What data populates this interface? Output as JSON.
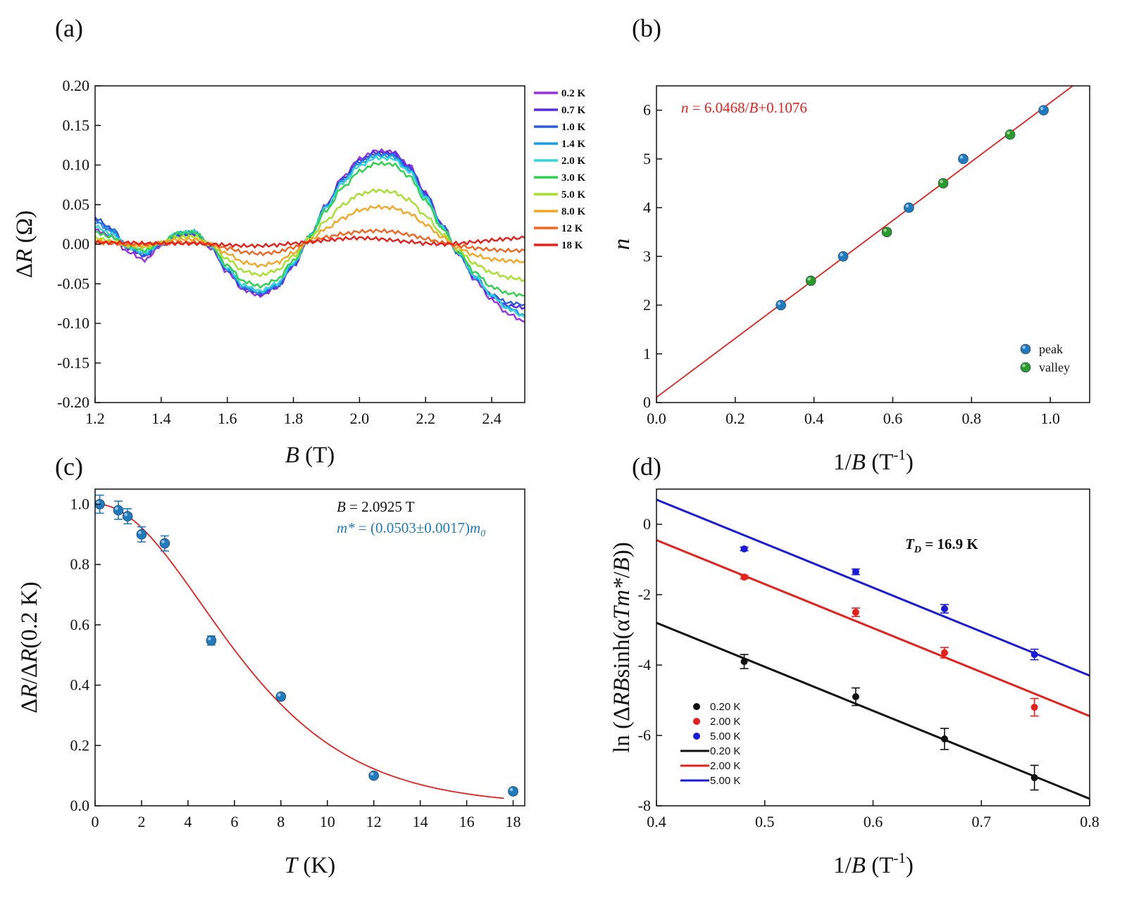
{
  "panels": [
    {
      "id": "a",
      "label": "(a)"
    },
    {
      "id": "b",
      "label": "(b)"
    },
    {
      "id": "c",
      "label": "(c)"
    },
    {
      "id": "d",
      "label": "(d)"
    }
  ],
  "chart_data": [
    {
      "panel": "(a)",
      "type": "line",
      "xlabel": "B (T)",
      "xlabel_parts": {
        "var": "B",
        "unit": " (T)"
      },
      "ylabel": "ΔR (Ω)",
      "ylabel_parts": {
        "pre": "Δ",
        "var": "R",
        "unit": " (Ω)"
      },
      "xlim": [
        1.2,
        2.5
      ],
      "ylim": [
        -0.2,
        0.2
      ],
      "xticks": [
        "1.2",
        "1.4",
        "1.6",
        "1.8",
        "2.0",
        "2.2",
        "2.4"
      ],
      "xtick_values": [
        1.2,
        1.4,
        1.6,
        1.8,
        2.0,
        2.2,
        2.4
      ],
      "yticks": [
        "-0.20",
        "-0.15",
        "-0.10",
        "-0.05",
        "0.00",
        "0.05",
        "0.10",
        "0.15",
        "0.20"
      ],
      "ytick_values": [
        -0.2,
        -0.15,
        -0.1,
        -0.05,
        0,
        0.05,
        0.1,
        0.15,
        0.2
      ],
      "legend_position": "outside-right",
      "series": [
        {
          "name": "0.2 K",
          "color": "#9b30e0",
          "x": [
            1.2,
            1.25,
            1.3,
            1.35,
            1.4,
            1.45,
            1.5,
            1.55,
            1.6,
            1.65,
            1.7,
            1.75,
            1.8,
            1.85,
            1.9,
            1.95,
            2.0,
            2.05,
            2.1,
            2.15,
            2.2,
            2.25,
            2.3,
            2.35,
            2.4,
            2.45,
            2.5
          ],
          "y": [
            0.018,
            0.01,
            -0.01,
            -0.02,
            -0.002,
            0.01,
            0.012,
            -0.005,
            -0.035,
            -0.058,
            -0.065,
            -0.055,
            -0.028,
            0.01,
            0.05,
            0.085,
            0.108,
            0.118,
            0.117,
            0.1,
            0.065,
            0.025,
            -0.012,
            -0.045,
            -0.07,
            -0.088,
            -0.098
          ]
        },
        {
          "name": "0.7 K",
          "color": "#5a2be0",
          "x": [
            1.2,
            1.25,
            1.3,
            1.35,
            1.4,
            1.45,
            1.5,
            1.55,
            1.6,
            1.65,
            1.7,
            1.75,
            1.8,
            1.85,
            1.9,
            1.95,
            2.0,
            2.05,
            2.1,
            2.15,
            2.2,
            2.25,
            2.3,
            2.35,
            2.4,
            2.45,
            2.5
          ],
          "y": [
            0.03,
            0.018,
            -0.005,
            -0.015,
            0,
            0.012,
            0.014,
            -0.003,
            -0.033,
            -0.056,
            -0.063,
            -0.054,
            -0.027,
            0.01,
            0.049,
            0.083,
            0.106,
            0.116,
            0.115,
            0.098,
            0.064,
            0.024,
            -0.012,
            -0.043,
            -0.066,
            -0.078,
            -0.08
          ]
        },
        {
          "name": "1.0 K",
          "color": "#2b5cdc",
          "x": [
            1.2,
            1.25,
            1.3,
            1.35,
            1.4,
            1.45,
            1.5,
            1.55,
            1.6,
            1.65,
            1.7,
            1.75,
            1.8,
            1.85,
            1.9,
            1.95,
            2.0,
            2.05,
            2.1,
            2.15,
            2.2,
            2.25,
            2.3,
            2.35,
            2.4,
            2.45,
            2.5
          ],
          "y": [
            0.033,
            0.02,
            -0.004,
            -0.014,
            0,
            0.013,
            0.015,
            -0.002,
            -0.032,
            -0.055,
            -0.062,
            -0.053,
            -0.026,
            0.01,
            0.048,
            0.081,
            0.104,
            0.114,
            0.113,
            0.096,
            0.062,
            0.023,
            -0.012,
            -0.042,
            -0.064,
            -0.074,
            -0.076
          ]
        },
        {
          "name": "1.4 K",
          "color": "#1a9be6",
          "x": [
            1.2,
            1.25,
            1.3,
            1.35,
            1.4,
            1.45,
            1.5,
            1.55,
            1.6,
            1.65,
            1.7,
            1.75,
            1.8,
            1.85,
            1.9,
            1.95,
            2.0,
            2.05,
            2.1,
            2.15,
            2.2,
            2.25,
            2.3,
            2.35,
            2.4,
            2.45,
            2.5
          ],
          "y": [
            0.028,
            0.017,
            -0.004,
            -0.012,
            0,
            0.014,
            0.016,
            -0.002,
            -0.031,
            -0.054,
            -0.061,
            -0.052,
            -0.025,
            0.011,
            0.048,
            0.08,
            0.102,
            0.112,
            0.111,
            0.094,
            0.06,
            0.022,
            -0.012,
            -0.042,
            -0.065,
            -0.08,
            -0.09
          ]
        },
        {
          "name": "2.0 K",
          "color": "#33d6d6",
          "x": [
            1.2,
            1.25,
            1.3,
            1.35,
            1.4,
            1.45,
            1.5,
            1.55,
            1.6,
            1.65,
            1.7,
            1.75,
            1.8,
            1.85,
            1.9,
            1.95,
            2.0,
            2.05,
            2.1,
            2.15,
            2.2,
            2.25,
            2.3,
            2.35,
            2.4,
            2.45,
            2.5
          ],
          "y": [
            0.022,
            0.013,
            -0.004,
            -0.01,
            0.001,
            0.014,
            0.016,
            -0.002,
            -0.03,
            -0.052,
            -0.059,
            -0.05,
            -0.024,
            0.011,
            0.047,
            0.078,
            0.099,
            0.109,
            0.108,
            0.092,
            0.059,
            0.022,
            -0.011,
            -0.041,
            -0.065,
            -0.082,
            -0.092
          ]
        },
        {
          "name": "3.0 K",
          "color": "#2fd24a",
          "x": [
            1.2,
            1.25,
            1.3,
            1.35,
            1.4,
            1.45,
            1.5,
            1.55,
            1.6,
            1.65,
            1.7,
            1.75,
            1.8,
            1.85,
            1.9,
            1.95,
            2.0,
            2.05,
            2.1,
            2.15,
            2.2,
            2.25,
            2.3,
            2.35,
            2.4,
            2.45,
            2.5
          ],
          "y": [
            0.015,
            0.009,
            -0.003,
            -0.008,
            0.002,
            0.014,
            0.015,
            -0.001,
            -0.027,
            -0.047,
            -0.053,
            -0.045,
            -0.021,
            0.01,
            0.043,
            0.072,
            0.092,
            0.102,
            0.101,
            0.086,
            0.055,
            0.02,
            -0.01,
            -0.036,
            -0.054,
            -0.062,
            -0.065
          ]
        },
        {
          "name": "5.0 K",
          "color": "#a6e02a",
          "x": [
            1.2,
            1.25,
            1.3,
            1.35,
            1.4,
            1.45,
            1.5,
            1.55,
            1.6,
            1.65,
            1.7,
            1.75,
            1.8,
            1.85,
            1.9,
            1.95,
            2.0,
            2.05,
            2.1,
            2.15,
            2.2,
            2.25,
            2.3,
            2.35,
            2.4,
            2.45,
            2.5
          ],
          "y": [
            0.008,
            0.004,
            -0.002,
            -0.004,
            0.002,
            0.009,
            0.01,
            0,
            -0.019,
            -0.034,
            -0.039,
            -0.033,
            -0.015,
            0.008,
            0.03,
            0.05,
            0.063,
            0.068,
            0.066,
            0.056,
            0.036,
            0.013,
            -0.008,
            -0.025,
            -0.036,
            -0.042,
            -0.045
          ]
        },
        {
          "name": "8.0 K",
          "color": "#f5a623",
          "x": [
            1.2,
            1.25,
            1.3,
            1.35,
            1.4,
            1.45,
            1.5,
            1.55,
            1.6,
            1.65,
            1.7,
            1.75,
            1.8,
            1.85,
            1.9,
            1.95,
            2.0,
            2.05,
            2.1,
            2.15,
            2.2,
            2.25,
            2.3,
            2.35,
            2.4,
            2.45,
            2.5
          ],
          "y": [
            0.005,
            0.002,
            -0.001,
            -0.002,
            0.002,
            0.006,
            0.006,
            0,
            -0.012,
            -0.023,
            -0.027,
            -0.023,
            -0.011,
            0.005,
            0.02,
            0.033,
            0.043,
            0.047,
            0.046,
            0.039,
            0.025,
            0.009,
            -0.005,
            -0.014,
            -0.019,
            -0.021,
            -0.022
          ]
        },
        {
          "name": "12 K",
          "color": "#f26522",
          "x": [
            1.2,
            1.25,
            1.3,
            1.35,
            1.4,
            1.45,
            1.5,
            1.55,
            1.6,
            1.65,
            1.7,
            1.75,
            1.8,
            1.85,
            1.9,
            1.95,
            2.0,
            2.05,
            2.1,
            2.15,
            2.2,
            2.25,
            2.3,
            2.35,
            2.4,
            2.45,
            2.5
          ],
          "y": [
            0.003,
            0.001,
            0,
            0,
            0.001,
            0.002,
            0.002,
            0,
            -0.005,
            -0.01,
            -0.012,
            -0.01,
            -0.004,
            0.003,
            0.009,
            0.013,
            0.016,
            0.017,
            0.016,
            0.012,
            0.007,
            0.002,
            -0.002,
            -0.005,
            -0.007,
            -0.008,
            -0.008
          ]
        },
        {
          "name": "18 K",
          "color": "#e8201c",
          "x": [
            1.2,
            1.25,
            1.3,
            1.35,
            1.4,
            1.45,
            1.5,
            1.55,
            1.6,
            1.65,
            1.7,
            1.75,
            1.8,
            1.85,
            1.9,
            1.95,
            2.0,
            2.05,
            2.1,
            2.15,
            2.2,
            2.25,
            2.3,
            2.35,
            2.4,
            2.45,
            2.5
          ],
          "y": [
            0.002,
            0.002,
            0.002,
            0.001,
            0.001,
            0.001,
            0.001,
            0,
            -0.001,
            -0.002,
            -0.002,
            -0.001,
            0.001,
            0.003,
            0.005,
            0.007,
            0.008,
            0.007,
            0.005,
            0.003,
            0.001,
            0,
            0.001,
            0.003,
            0.005,
            0.007,
            0.008
          ]
        }
      ]
    },
    {
      "panel": "(b)",
      "type": "scatter",
      "xlabel": "1/B (T-1)",
      "xlabel_parts": {
        "pre": "1/",
        "var": "B",
        "unit": " (T",
        "sup": "-1",
        "close": ")"
      },
      "ylabel": "n",
      "xlim": [
        0,
        1.1
      ],
      "ylim": [
        0,
        6.5
      ],
      "xticks": [
        "0.0",
        "0.2",
        "0.4",
        "0.6",
        "0.8",
        "1.0"
      ],
      "xtick_values": [
        0,
        0.2,
        0.4,
        0.6,
        0.8,
        1.0
      ],
      "yticks": [
        "0",
        "1",
        "2",
        "3",
        "4",
        "5",
        "6"
      ],
      "ytick_values": [
        0,
        1,
        2,
        3,
        4,
        5,
        6
      ],
      "annotation": "n = 6.0468/B+0.1076",
      "annotation_parts": {
        "var": "n",
        "mid": " = 6.0468/",
        "var2": "B",
        "end": "+0.1076"
      },
      "annotation_color": "#e8201c",
      "fit": {
        "slope": 6.0468,
        "intercept": 0.1076,
        "color": "#e8201c"
      },
      "legend_position": "bottom-right",
      "series": [
        {
          "name": "peak",
          "color": "#1f7bbf",
          "x": [
            0.316,
            0.474,
            0.641,
            0.779,
            0.983
          ],
          "y": [
            2,
            3,
            4,
            5,
            6
          ]
        },
        {
          "name": "valley",
          "color": "#2a9a2a",
          "x": [
            0.392,
            0.585,
            0.728,
            0.898
          ],
          "y": [
            2.5,
            3.5,
            4.5,
            5.5
          ]
        }
      ]
    },
    {
      "panel": "(c)",
      "type": "scatter",
      "xlabel": "T (K)",
      "xlabel_parts": {
        "var": "T",
        "unit": " (K)"
      },
      "ylabel": "ΔR/ΔR(0.2 K)",
      "ylabel_parts": {
        "pre": "Δ",
        "var": "R",
        "mid": "/Δ",
        "var2": "R",
        "unit": "(0.2 K)"
      },
      "xlim": [
        0,
        18.5
      ],
      "ylim": [
        0,
        1.05
      ],
      "xticks": [
        "0",
        "2",
        "4",
        "6",
        "8",
        "10",
        "12",
        "14",
        "16",
        "18"
      ],
      "xtick_values": [
        0,
        2,
        4,
        6,
        8,
        10,
        12,
        14,
        16,
        18
      ],
      "yticks": [
        "0.0",
        "0.2",
        "0.4",
        "0.6",
        "0.8",
        "1.0"
      ],
      "ytick_values": [
        0,
        0.2,
        0.4,
        0.6,
        0.8,
        1.0
      ],
      "annotation_b": "B = 2.0925 T",
      "annotation_b_parts": {
        "var": "B",
        "rest": " = 2.0925 T"
      },
      "annotation_m": "m* = (0.0503±0.0017)m0",
      "annotation_m_parts": {
        "var": "m*",
        "mid": " = (0.0503±0.0017)",
        "var2": "m",
        "sub": "0"
      },
      "annotation_m_color": "#1f7bbf",
      "fit": {
        "m_star": 0.0503,
        "B": 2.0925,
        "color": "#e8201c"
      },
      "series": [
        {
          "name": "data",
          "color": "#1f7bbf",
          "x": [
            0.2,
            1.0,
            1.4,
            2.0,
            3.0,
            5.0,
            8.0,
            12.0,
            18.0
          ],
          "y": [
            1.0,
            0.98,
            0.96,
            0.9,
            0.87,
            0.548,
            0.362,
            0.1,
            0.048
          ],
          "err": [
            0.03,
            0.03,
            0.025,
            0.025,
            0.025,
            0.015,
            0.01,
            0.008,
            0.008
          ]
        }
      ]
    },
    {
      "panel": "(d)",
      "type": "scatter",
      "xlabel": "1/B (T-1)",
      "xlabel_parts": {
        "pre": "1/",
        "var": "B",
        "unit": " (T",
        "sup": "-1",
        "close": ")"
      },
      "ylabel": "ln (ΔRBsinh(αTm*/B))",
      "ylabel_parts": {
        "pre": "ln (Δ",
        "var": "RB",
        "mid": "sinh(α",
        "var2": "Tm*",
        "mid2": "/",
        "var3": "B",
        "end": "))"
      },
      "xlim": [
        0.4,
        0.8
      ],
      "ylim": [
        -8,
        1
      ],
      "xticks": [
        "0.4",
        "0.5",
        "0.6",
        "0.7",
        "0.8"
      ],
      "xtick_values": [
        0.4,
        0.5,
        0.6,
        0.7,
        0.8
      ],
      "yticks": [
        "-8",
        "-6",
        "-4",
        "-2",
        "0"
      ],
      "ytick_values": [
        -8,
        -6,
        -4,
        -2,
        0
      ],
      "annotation": "TD = 16.9 K",
      "annotation_parts": {
        "var": "T",
        "sub": "D",
        "rest": " = 16.9 K"
      },
      "legend_position": "bottom-left",
      "series": [
        {
          "name": "0.20 K",
          "color": "#111111",
          "x": [
            0.481,
            0.584,
            0.666,
            0.749
          ],
          "y": [
            -3.9,
            -4.9,
            -6.1,
            -7.2
          ],
          "err": [
            0.2,
            0.25,
            0.3,
            0.35
          ]
        },
        {
          "name": "2.00 K",
          "color": "#e8201c",
          "x": [
            0.481,
            0.584,
            0.666,
            0.749
          ],
          "y": [
            -1.5,
            -2.5,
            -3.65,
            -5.2
          ],
          "err": [
            0.05,
            0.12,
            0.15,
            0.25
          ]
        },
        {
          "name": "5.00 K",
          "color": "#1a1adc",
          "x": [
            0.481,
            0.584,
            0.666,
            0.749
          ],
          "y": [
            -0.7,
            -1.35,
            -2.4,
            -3.7
          ],
          "err": [
            0.05,
            0.08,
            0.12,
            0.15
          ]
        }
      ],
      "fits": [
        {
          "name": "0.20 K",
          "color": "#111111",
          "x": [
            0.4,
            0.8
          ],
          "y": [
            -2.8,
            -7.8
          ]
        },
        {
          "name": "2.00 K",
          "color": "#e8201c",
          "x": [
            0.4,
            0.8
          ],
          "y": [
            -0.45,
            -5.45
          ]
        },
        {
          "name": "5.00 K",
          "color": "#1a1adc",
          "x": [
            0.4,
            0.8
          ],
          "y": [
            0.7,
            -4.3
          ]
        }
      ]
    }
  ]
}
